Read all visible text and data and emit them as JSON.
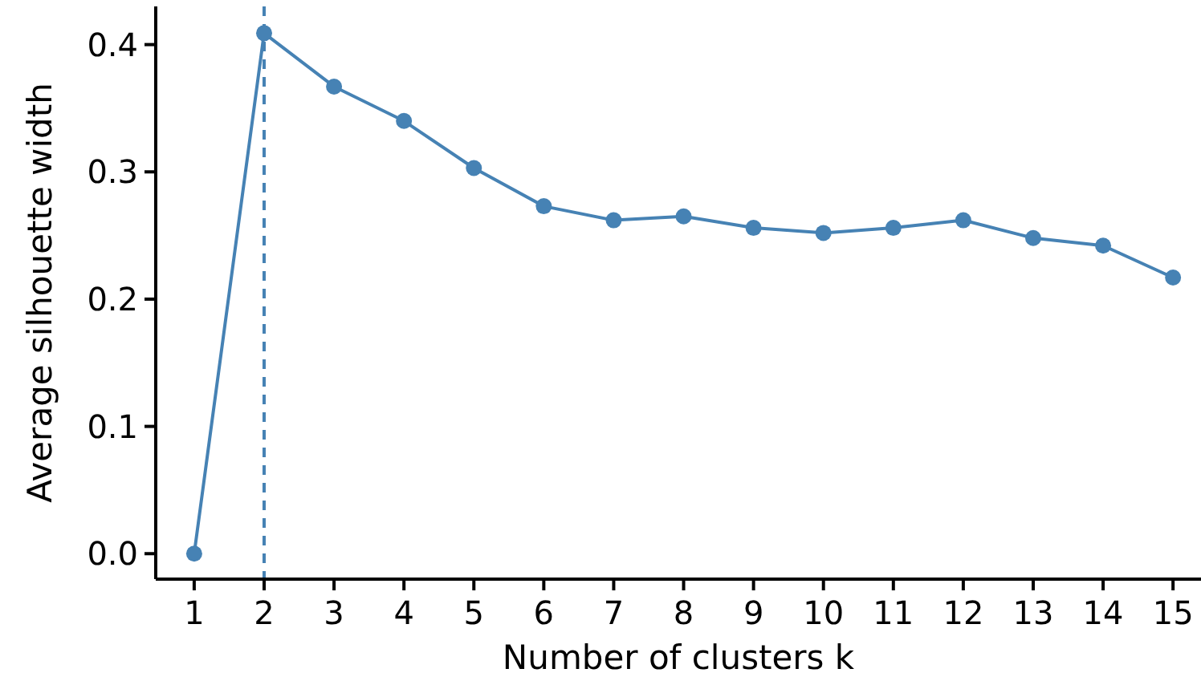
{
  "chart_data": {
    "type": "line",
    "xlabel": "Number of clusters k",
    "ylabel": "Average silhouette width",
    "x": [
      1,
      2,
      3,
      4,
      5,
      6,
      7,
      8,
      9,
      10,
      11,
      12,
      13,
      14,
      15
    ],
    "series": [
      {
        "color": "#4682b4",
        "values": [
          0,
          0.409,
          0.367,
          0.34,
          0.303,
          0.273,
          0.262,
          0.265,
          0.256,
          0.252,
          0.256,
          0.262,
          0.248,
          0.242,
          0.217
        ]
      }
    ],
    "xlim": [
      0.45,
      15.4
    ],
    "ylim": [
      -0.02,
      0.43
    ],
    "xticks": [
      1,
      2,
      3,
      4,
      5,
      6,
      7,
      8,
      9,
      10,
      11,
      12,
      13,
      14,
      15
    ],
    "yticks": [
      {
        "value": 0,
        "label": "0.0"
      },
      {
        "value": 0.1,
        "label": "0.1"
      },
      {
        "value": 0.2,
        "label": "0.2"
      },
      {
        "value": 0.3,
        "label": "0.3"
      },
      {
        "value": 0.4,
        "label": "0.4"
      }
    ],
    "ref_lines": [
      {
        "axis": "x",
        "value": 2,
        "color": "#4682b4",
        "line_style": "dashed"
      }
    ],
    "marker": "circle",
    "line_style": "solid",
    "grid": false
  }
}
